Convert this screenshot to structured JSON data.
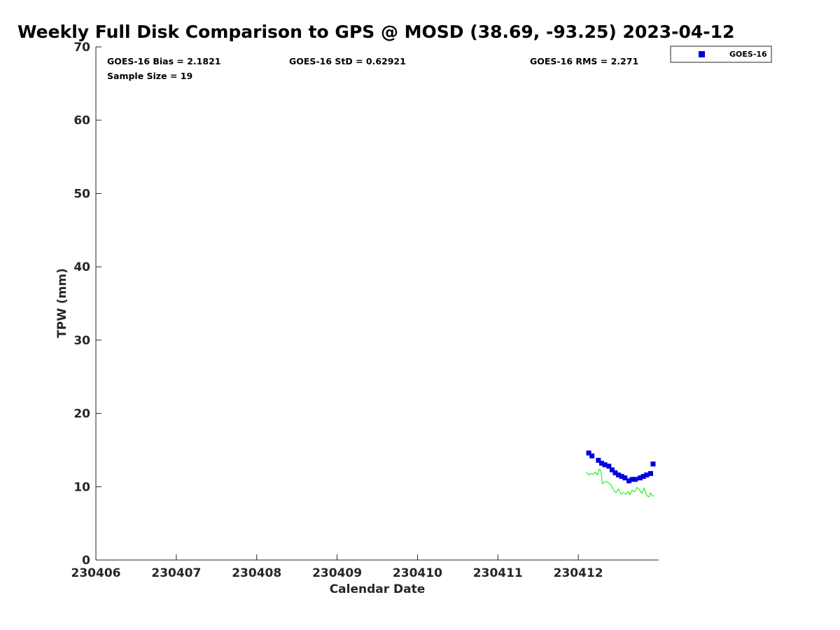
{
  "chart_data": {
    "type": "scatter",
    "title": "Weekly Full Disk Comparison to GPS @ MOSD (38.69, -93.25) 2023-04-12",
    "xlabel": "Calendar Date",
    "ylabel": "TPW (mm)",
    "xlim": [
      230406,
      230413
    ],
    "ylim": [
      0,
      70
    ],
    "x_ticks": [
      230406,
      230407,
      230408,
      230409,
      230410,
      230411,
      230412
    ],
    "x_tick_labels": [
      "230406",
      "230407",
      "230408",
      "230409",
      "230410",
      "230411",
      "230412"
    ],
    "y_ticks": [
      0,
      10,
      20,
      30,
      40,
      50,
      60,
      70
    ],
    "y_tick_labels": [
      "0",
      "10",
      "20",
      "30",
      "40",
      "50",
      "60",
      "70"
    ],
    "grid": false,
    "legend_position": "top-right",
    "stats": {
      "bias": "GOES-16 Bias = 2.1821",
      "std": "GOES-16 StD = 0.62921",
      "rms": "GOES-16 RMS = 2.271",
      "sample_size": "Sample Size = 19"
    },
    "series": [
      {
        "name": "GOES-16",
        "kind": "markers",
        "color": "#0000dd",
        "x": [
          230412.13,
          230412.17,
          230412.25,
          230412.29,
          230412.33,
          230412.38,
          230412.42,
          230412.46,
          230412.5,
          230412.54,
          230412.58,
          230412.63,
          230412.67,
          230412.71,
          230412.77,
          230412.81,
          230412.85,
          230412.9,
          230412.93
        ],
        "y": [
          14.6,
          14.2,
          13.6,
          13.2,
          13.0,
          12.8,
          12.3,
          11.9,
          11.6,
          11.4,
          11.2,
          10.8,
          11.0,
          11.0,
          11.2,
          11.4,
          11.6,
          11.8,
          13.1
        ]
      },
      {
        "kind": "line",
        "color": "#00ee00",
        "x": [
          230412.1,
          230412.13,
          230412.16,
          230412.19,
          230412.21,
          230412.24,
          230412.26,
          230412.28,
          230412.3,
          230412.32,
          230412.35,
          230412.38,
          230412.41,
          230412.44,
          230412.47,
          230412.5,
          230412.53,
          230412.56,
          230412.59,
          230412.62,
          230412.64,
          230412.67,
          230412.7,
          230412.73,
          230412.76,
          230412.79,
          230412.82,
          230412.85,
          230412.88,
          230412.9,
          230412.92,
          230412.94
        ],
        "y": [
          12.0,
          11.6,
          11.8,
          11.7,
          12.0,
          11.6,
          12.4,
          12.2,
          10.4,
          10.6,
          10.7,
          10.5,
          10.2,
          9.5,
          9.2,
          9.7,
          9.0,
          9.2,
          9.0,
          9.3,
          8.9,
          9.5,
          9.3,
          9.9,
          9.6,
          9.1,
          9.8,
          8.8,
          8.6,
          9.2,
          8.7,
          8.8
        ]
      }
    ]
  }
}
